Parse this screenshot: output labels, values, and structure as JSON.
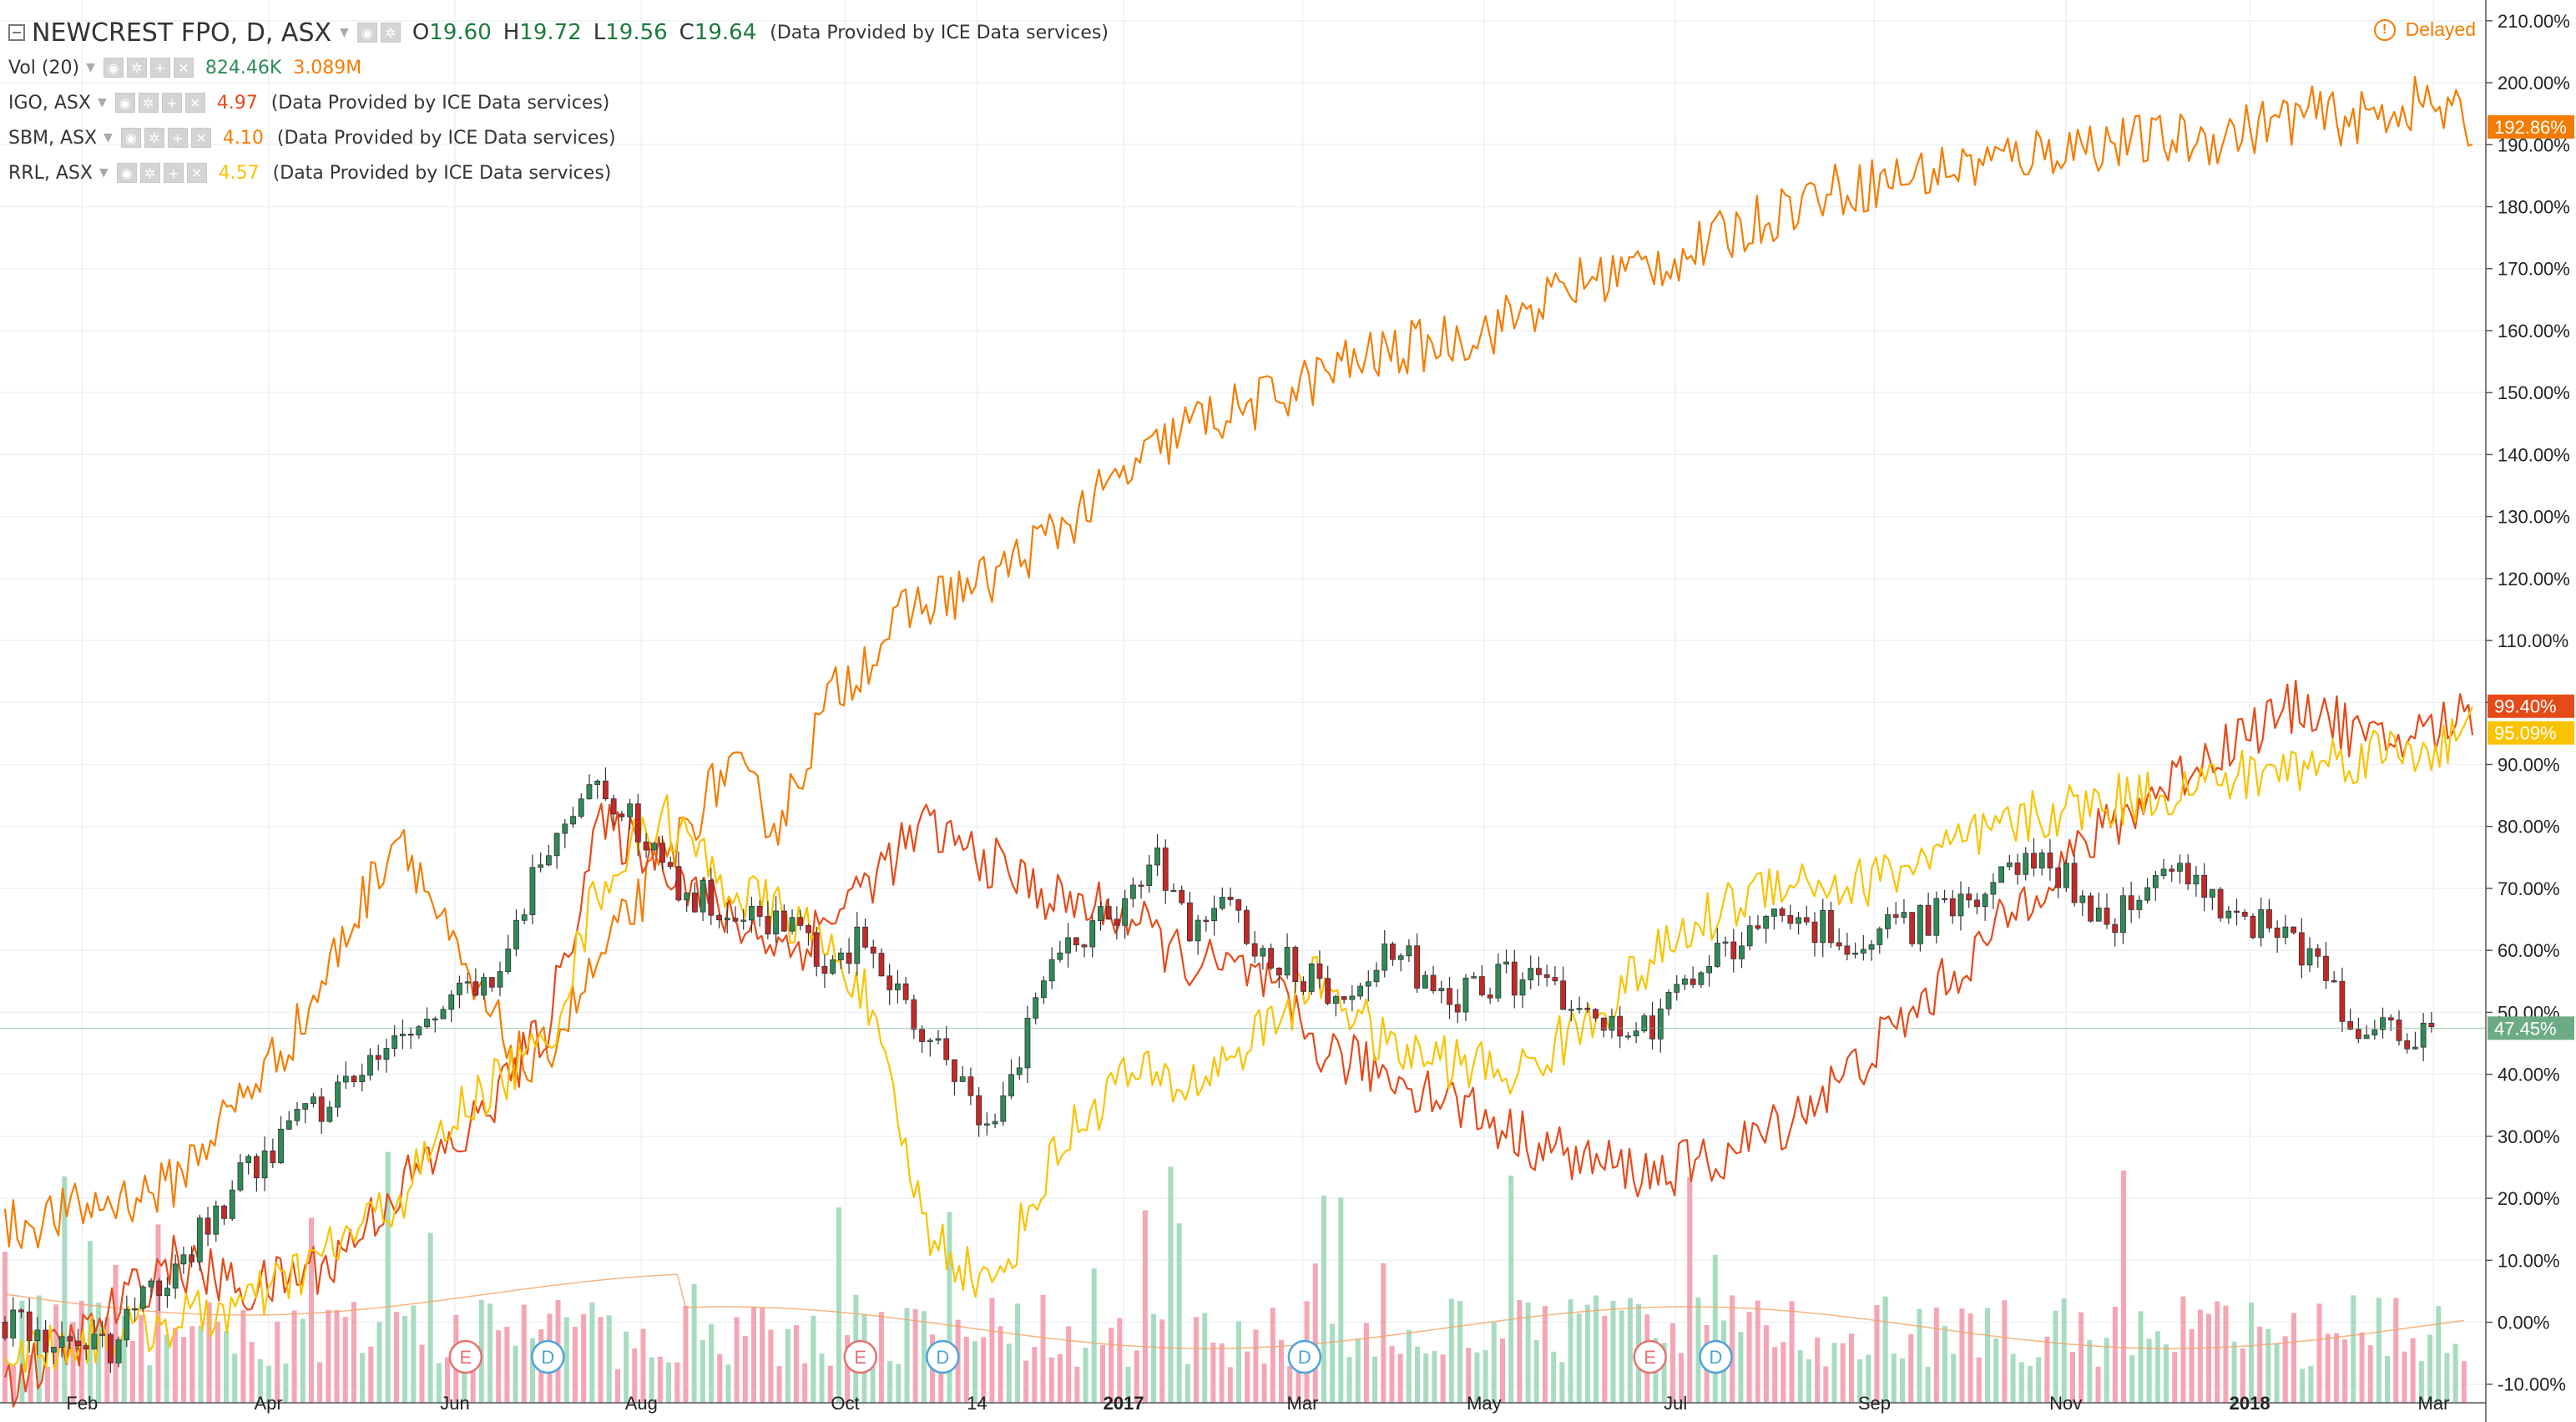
{
  "header": {
    "symbol": "NEWCREST FPO, D, ASX",
    "open_label": "O",
    "open": "19.60",
    "high_label": "H",
    "high": "19.72",
    "low_label": "L",
    "low": "19.56",
    "close_label": "C",
    "close": "19.64",
    "provider": "(Data Provided by ICE Data services)",
    "delayed": "Delayed"
  },
  "volume": {
    "label": "Vol (20)",
    "value": "824.46K",
    "ma_value": "3.089M"
  },
  "comparisons": [
    {
      "name": "IGO, ASX",
      "value": "4.97",
      "color": "#e64a19",
      "provider": "(Data Provided by ICE Data services)"
    },
    {
      "name": "SBM, ASX",
      "value": "4.10",
      "color": "#f57c00",
      "provider": "(Data Provided by ICE Data services)"
    },
    {
      "name": "RRL, ASX",
      "value": "4.57",
      "color": "#f9c300",
      "provider": "(Data Provided by ICE Data services)"
    }
  ],
  "colors": {
    "up": "#2e8b57",
    "down": "#c62828",
    "vol_up": "#a8dcc0",
    "vol_down": "#f4a6b4",
    "grid": "#eef0f3",
    "axis_text": "#222222",
    "badge_main": "#6dab85"
  },
  "chart_data": {
    "type": "candlestick-comparison",
    "title": "NEWCREST FPO, D, ASX",
    "x_tick_labels": [
      "Feb",
      "Apr",
      "Jun",
      "Aug",
      "Oct",
      "14",
      "2017",
      "Mar",
      "May",
      "Jul",
      "Sep",
      "Nov",
      "2018",
      "Mar"
    ],
    "y_tick_labels": [
      "210.00%",
      "200.00%",
      "190.00%",
      "180.00%",
      "170.00%",
      "160.00%",
      "150.00%",
      "140.00%",
      "130.00%",
      "120.00%",
      "110.00%",
      "100.00%",
      "90.00%",
      "80.00%",
      "70.00%",
      "60.00%",
      "50.00%",
      "40.00%",
      "30.00%",
      "20.00%",
      "10.00%",
      "0.00%",
      "-10.00%"
    ],
    "ylim": [
      -13,
      212
    ],
    "y_unit": "percent change",
    "last_values": [
      {
        "series": "SBM, ASX",
        "label": "192.86%",
        "value": 192.86,
        "color": "#f57c00"
      },
      {
        "series": "IGO, ASX",
        "label": "99.40%",
        "value": 99.4,
        "color": "#e64a19"
      },
      {
        "series": "RRL, ASX",
        "label": "95.09%",
        "value": 95.09,
        "color": "#f9c300"
      },
      {
        "series": "NEWCREST FPO",
        "label": "47.45%",
        "value": 47.45,
        "color": "#6dab85"
      }
    ],
    "series": [
      {
        "name": "SBM, ASX",
        "color": "#f57c00",
        "keypoints": [
          [
            0,
            15
          ],
          [
            10,
            22
          ],
          [
            18,
            48
          ],
          [
            24,
            80
          ],
          [
            28,
            55
          ],
          [
            32,
            40
          ],
          [
            38,
            66
          ],
          [
            44,
            90
          ],
          [
            47,
            80
          ],
          [
            50,
            100
          ],
          [
            55,
            115
          ],
          [
            60,
            120
          ],
          [
            66,
            132
          ],
          [
            72,
            145
          ],
          [
            76,
            148
          ],
          [
            82,
            155
          ],
          [
            90,
            160
          ],
          [
            96,
            168
          ],
          [
            102,
            172
          ],
          [
            110,
            182
          ],
          [
            118,
            186
          ],
          [
            126,
            190
          ],
          [
            134,
            191
          ],
          [
            140,
            195
          ],
          [
            143,
            194
          ],
          [
            147,
            197
          ],
          [
            150,
            193
          ]
        ]
      },
      {
        "name": "IGO, ASX",
        "color": "#e64a19",
        "keypoints": [
          [
            0,
            -10
          ],
          [
            5,
            -2
          ],
          [
            10,
            10
          ],
          [
            15,
            5
          ],
          [
            20,
            10
          ],
          [
            24,
            22
          ],
          [
            28,
            30
          ],
          [
            33,
            48
          ],
          [
            36,
            80
          ],
          [
            40,
            75
          ],
          [
            44,
            65
          ],
          [
            48,
            60
          ],
          [
            52,
            70
          ],
          [
            56,
            80
          ],
          [
            60,
            74
          ],
          [
            64,
            68
          ],
          [
            68,
            66
          ],
          [
            72,
            58
          ],
          [
            76,
            56
          ],
          [
            80,
            44
          ],
          [
            84,
            40
          ],
          [
            88,
            36
          ],
          [
            92,
            30
          ],
          [
            96,
            26
          ],
          [
            100,
            24
          ],
          [
            104,
            26
          ],
          [
            108,
            32
          ],
          [
            112,
            40
          ],
          [
            116,
            50
          ],
          [
            120,
            60
          ],
          [
            124,
            72
          ],
          [
            128,
            80
          ],
          [
            132,
            88
          ],
          [
            136,
            95
          ],
          [
            140,
            100
          ],
          [
            144,
            93
          ],
          [
            148,
            96
          ],
          [
            150,
            99
          ]
        ]
      },
      {
        "name": "RRL, ASX",
        "color": "#f9c300",
        "keypoints": [
          [
            0,
            -5
          ],
          [
            5,
            -3
          ],
          [
            10,
            0
          ],
          [
            15,
            3
          ],
          [
            20,
            12
          ],
          [
            24,
            20
          ],
          [
            28,
            35
          ],
          [
            33,
            45
          ],
          [
            36,
            70
          ],
          [
            40,
            82
          ],
          [
            44,
            70
          ],
          [
            48,
            65
          ],
          [
            52,
            55
          ],
          [
            56,
            15
          ],
          [
            60,
            5
          ],
          [
            64,
            28
          ],
          [
            68,
            40
          ],
          [
            72,
            38
          ],
          [
            76,
            46
          ],
          [
            80,
            56
          ],
          [
            84,
            44
          ],
          [
            88,
            42
          ],
          [
            92,
            40
          ],
          [
            96,
            48
          ],
          [
            100,
            58
          ],
          [
            104,
            66
          ],
          [
            108,
            72
          ],
          [
            112,
            70
          ],
          [
            116,
            74
          ],
          [
            120,
            78
          ],
          [
            124,
            82
          ],
          [
            128,
            84
          ],
          [
            132,
            86
          ],
          [
            136,
            88
          ],
          [
            140,
            90
          ],
          [
            144,
            92
          ],
          [
            148,
            93
          ],
          [
            150,
            95
          ]
        ]
      }
    ],
    "candle_path": [
      [
        0,
        0
      ],
      [
        6,
        -5
      ],
      [
        10,
        8
      ],
      [
        14,
        22
      ],
      [
        18,
        32
      ],
      [
        22,
        40
      ],
      [
        26,
        48
      ],
      [
        30,
        58
      ],
      [
        33,
        78
      ],
      [
        36,
        88
      ],
      [
        38,
        82
      ],
      [
        40,
        72
      ],
      [
        44,
        66
      ],
      [
        48,
        64
      ],
      [
        50,
        58
      ],
      [
        52,
        62
      ],
      [
        54,
        54
      ],
      [
        56,
        46
      ],
      [
        58,
        40
      ],
      [
        60,
        30
      ],
      [
        62,
        46
      ],
      [
        64,
        58
      ],
      [
        68,
        68
      ],
      [
        70,
        74
      ],
      [
        72,
        62
      ],
      [
        74,
        68
      ],
      [
        76,
        60
      ],
      [
        78,
        58
      ],
      [
        80,
        54
      ],
      [
        82,
        50
      ],
      [
        84,
        62
      ],
      [
        86,
        56
      ],
      [
        88,
        52
      ],
      [
        92,
        56
      ],
      [
        96,
        50
      ],
      [
        100,
        48
      ],
      [
        104,
        58
      ],
      [
        108,
        66
      ],
      [
        112,
        62
      ],
      [
        116,
        64
      ],
      [
        120,
        70
      ],
      [
        124,
        74
      ],
      [
        126,
        70
      ],
      [
        128,
        64
      ],
      [
        130,
        70
      ],
      [
        132,
        74
      ],
      [
        134,
        68
      ],
      [
        136,
        66
      ],
      [
        138,
        62
      ],
      [
        140,
        60
      ],
      [
        142,
        50
      ],
      [
        144,
        47
      ],
      [
        148,
        47
      ]
    ],
    "candle_count": 148,
    "events": [
      {
        "label": "E",
        "type": "earnings",
        "at": 28
      },
      {
        "label": "D",
        "type": "dividend",
        "at": 33
      },
      {
        "label": "E",
        "type": "earnings",
        "at": 52
      },
      {
        "label": "D",
        "type": "dividend",
        "at": 57
      },
      {
        "label": "D",
        "type": "dividend",
        "at": 79
      },
      {
        "label": "E",
        "type": "earnings",
        "at": 100
      },
      {
        "label": "D",
        "type": "dividend",
        "at": 104
      }
    ],
    "legend_position": "top-left",
    "grid": true
  }
}
